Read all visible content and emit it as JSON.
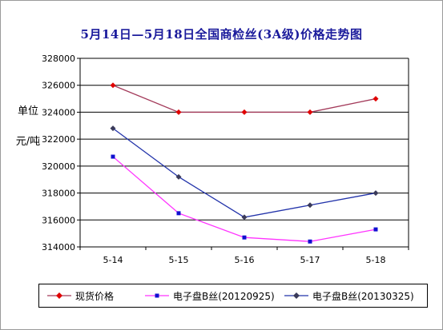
{
  "chart_data": {
    "type": "line",
    "title": "5月14日—5月18日全国商检丝(3A级)价格走势图",
    "ylabel_lines": [
      "单位",
      "元/吨"
    ],
    "categories": [
      "5-14",
      "5-15",
      "5-16",
      "5-17",
      "5-18"
    ],
    "ylim": [
      314000,
      328000
    ],
    "yticks": [
      314000,
      316000,
      318000,
      320000,
      322000,
      324000,
      326000,
      328000
    ],
    "grid": true,
    "legend_position": "bottom",
    "series": [
      {
        "name": "现货价格",
        "color": "#e00000",
        "line_color": "#a33a5a",
        "marker": "diamond",
        "values": [
          326000,
          324000,
          324000,
          324000,
          325000
        ]
      },
      {
        "name": "电子盘B丝(20120925)",
        "color": "#1010d0",
        "line_color": "#ff33ff",
        "marker": "square",
        "values": [
          320700,
          316500,
          314700,
          314400,
          315300
        ]
      },
      {
        "name": "电子盘B丝(20130325)",
        "color": "#3a3a5a",
        "line_color": "#2233aa",
        "marker": "diamond",
        "values": [
          322800,
          319200,
          316200,
          317100,
          318000
        ]
      }
    ]
  }
}
